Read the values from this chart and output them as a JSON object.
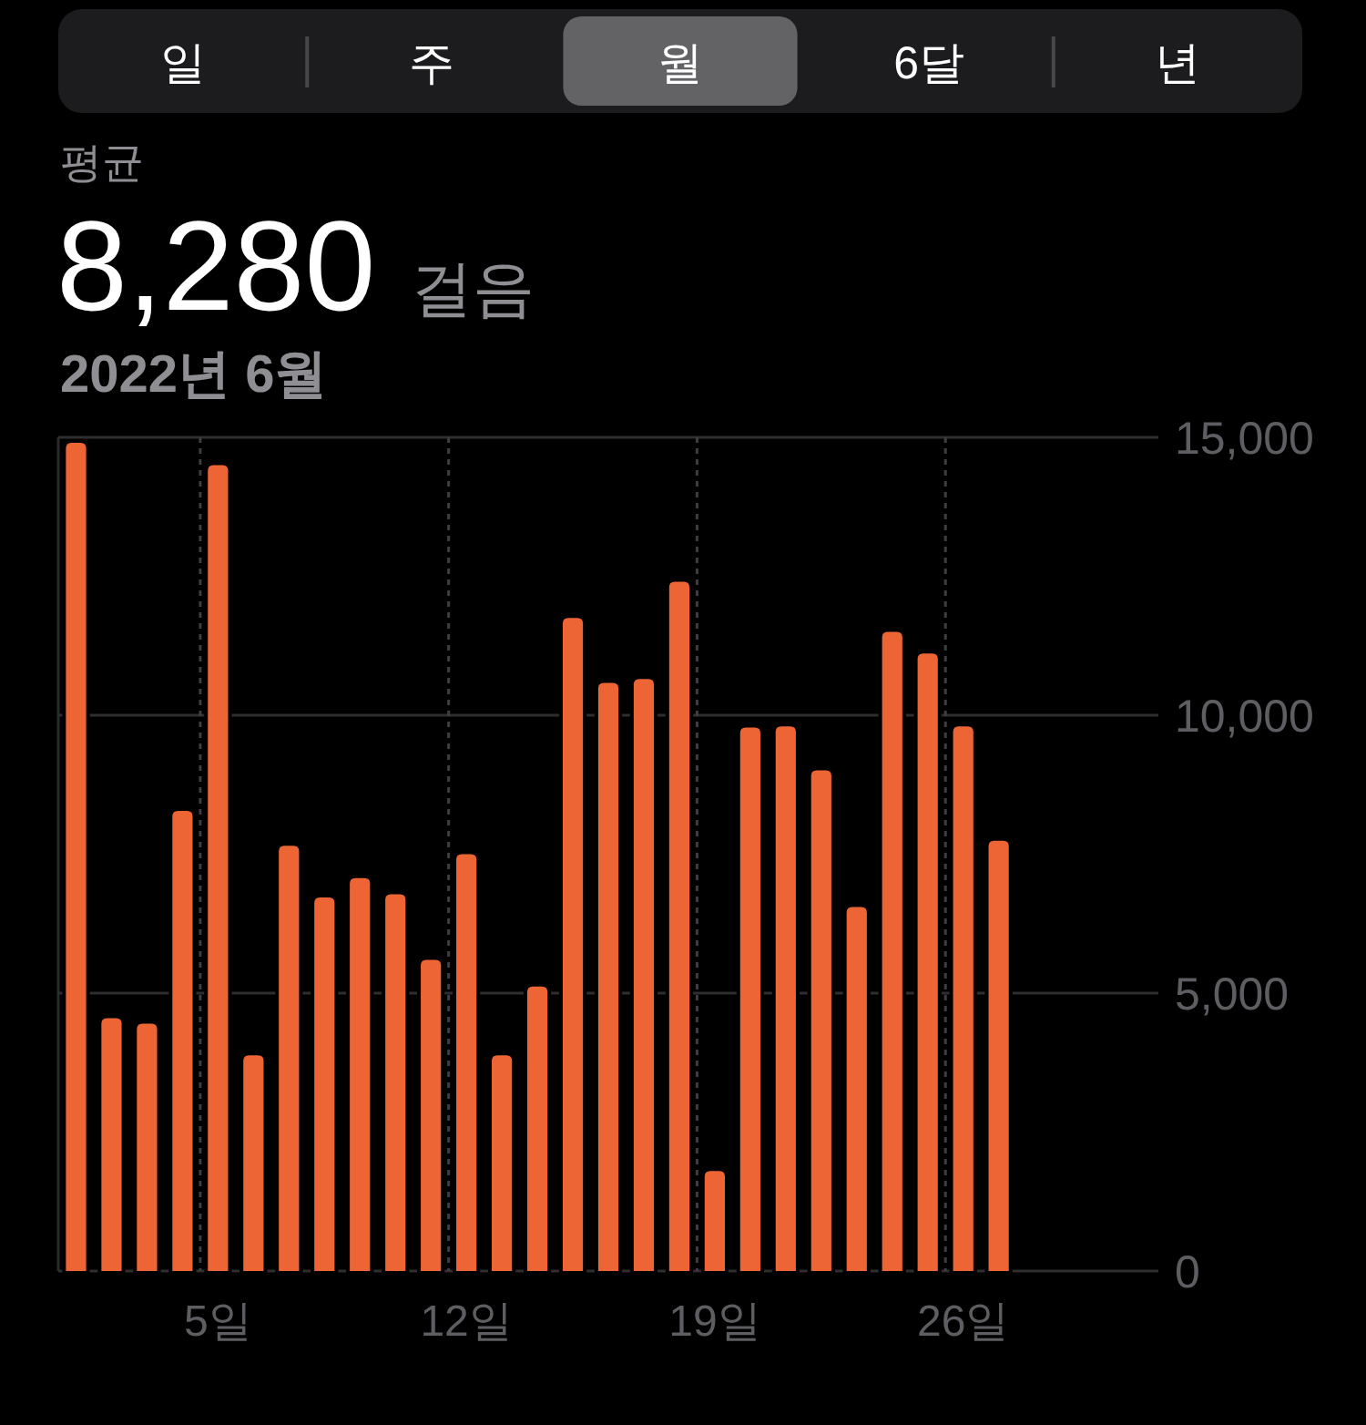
{
  "chart_data": {
    "type": "bar",
    "title": "8,280 걸음",
    "subtitle": "2022년 6월",
    "annotations": [
      "일",
      "주",
      "월",
      "6달",
      "년",
      "평균"
    ],
    "categories": [
      null,
      null,
      null,
      null,
      "5일",
      null,
      null,
      null,
      null,
      null,
      null,
      "12일",
      null,
      null,
      null,
      null,
      null,
      null,
      "19일",
      null,
      null,
      null,
      null,
      null,
      null,
      "26일",
      null,
      null,
      null,
      null
    ],
    "values": [
      14900,
      4550,
      4450,
      8280,
      14500,
      3880,
      7650,
      6720,
      7070,
      6780,
      5600,
      7500,
      3880,
      5120,
      11750,
      10580,
      10650,
      12400,
      1800,
      9780,
      9800,
      9010,
      6550,
      11500,
      11110,
      9800,
      7740,
      null,
      null,
      null
    ],
    "color": "#ed6535",
    "ylim": [
      0,
      15000
    ],
    "yticks": [
      0,
      {
        "value": 5000,
        "label": "5,000"
      },
      {
        "value": 10000,
        "label": "10,000"
      },
      {
        "value": 15000,
        "label": "15,000"
      }
    ],
    "grid": true
  }
}
